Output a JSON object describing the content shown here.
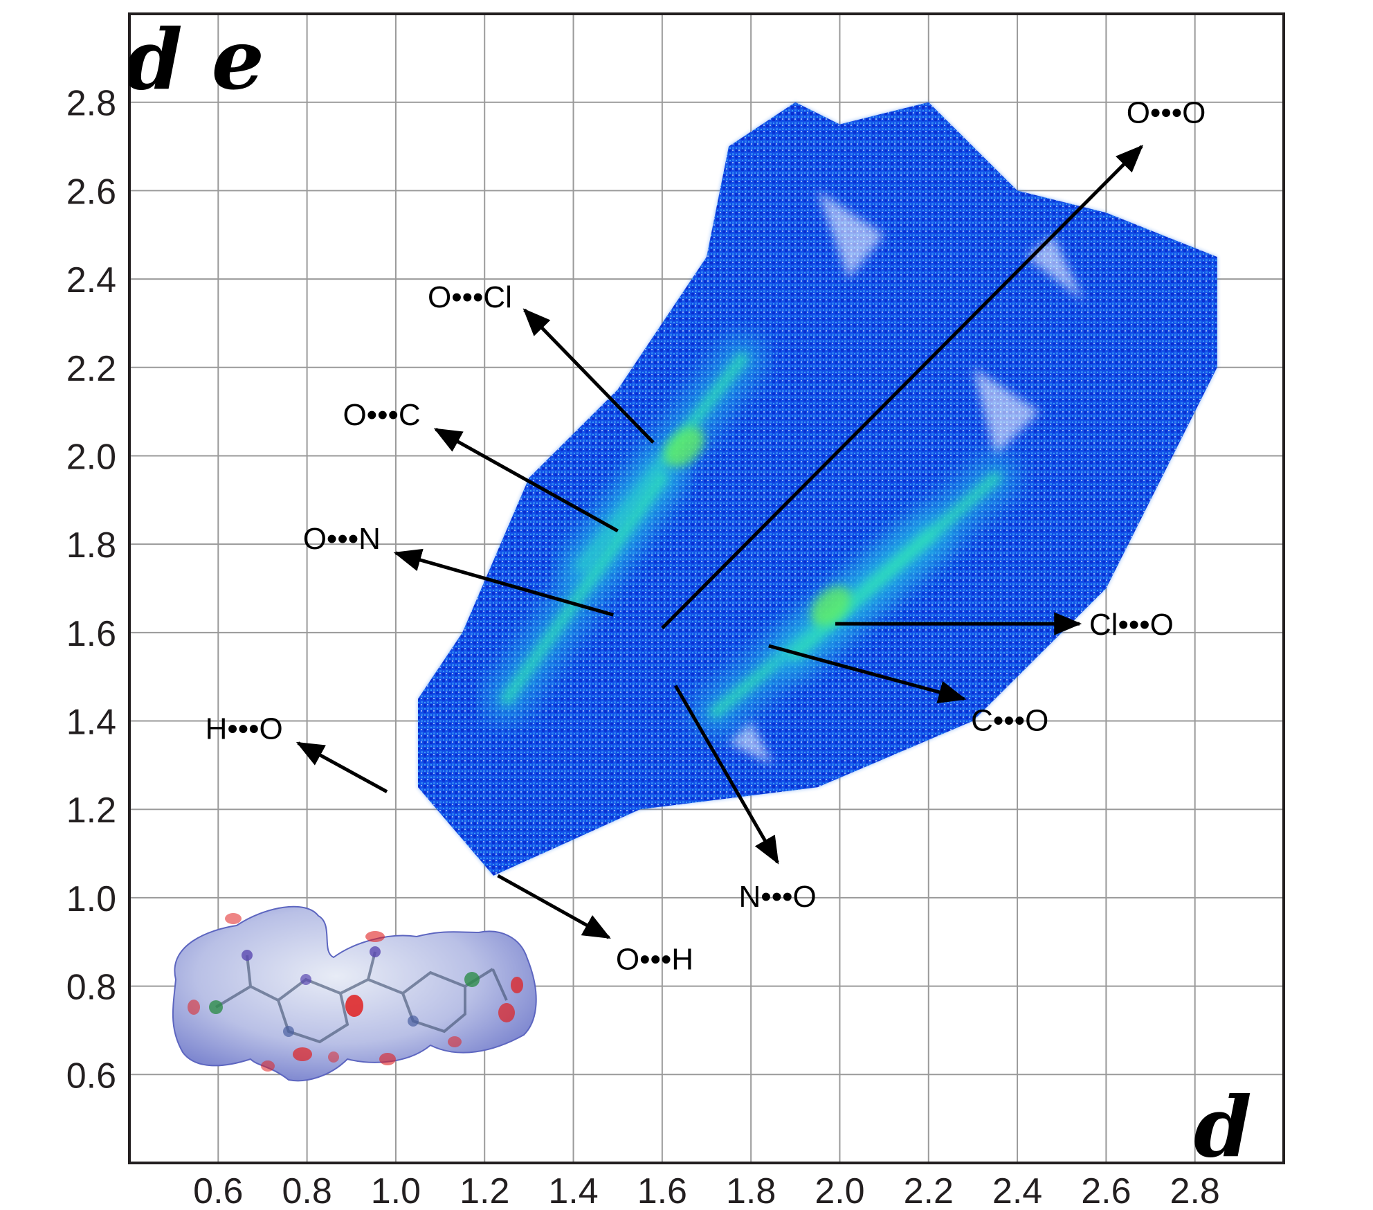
{
  "chart_data": {
    "type": "scatter",
    "title": "",
    "xlabel": "d i",
    "ylabel": "d e",
    "xlim": [
      0.4,
      3.0
    ],
    "ylim": [
      0.4,
      3.0
    ],
    "x_ticks": [
      "0.6",
      "0.8",
      "1.0",
      "1.2",
      "1.4",
      "1.6",
      "1.8",
      "2.0",
      "2.2",
      "2.4",
      "2.6",
      "2.8"
    ],
    "y_ticks": [
      "2.8",
      "2.6",
      "2.4",
      "2.2",
      "2.0",
      "1.8",
      "1.6",
      "1.4",
      "1.2",
      "1.0",
      "0.8",
      "0.6"
    ],
    "grid": true,
    "colormap": [
      "#0a3cd8",
      "#1e6ef0",
      "#28b4e6",
      "#2ee6b4",
      "#64f064"
    ],
    "regions": [
      {
        "polygon": [
          [
            1.05,
            1.25
          ],
          [
            1.22,
            1.05
          ],
          [
            1.55,
            1.2
          ],
          [
            1.95,
            1.25
          ],
          [
            2.3,
            1.4
          ],
          [
            2.6,
            1.7
          ],
          [
            2.85,
            2.2
          ],
          [
            2.85,
            2.45
          ],
          [
            2.6,
            2.55
          ],
          [
            2.4,
            2.6
          ],
          [
            2.2,
            2.8
          ],
          [
            2.0,
            2.75
          ],
          [
            1.9,
            2.8
          ],
          [
            1.75,
            2.7
          ],
          [
            1.7,
            2.45
          ],
          [
            1.5,
            2.15
          ],
          [
            1.3,
            1.95
          ],
          [
            1.15,
            1.6
          ],
          [
            1.05,
            1.45
          ]
        ]
      }
    ],
    "ridges": [
      {
        "from": [
          1.42,
          1.75
        ],
        "to": [
          1.78,
          2.22
        ]
      },
      {
        "from": [
          1.72,
          1.42
        ],
        "to": [
          2.2,
          1.82
        ]
      },
      {
        "from": [
          1.25,
          1.45
        ],
        "to": [
          1.6,
          1.95
        ]
      },
      {
        "from": [
          1.9,
          1.55
        ],
        "to": [
          2.35,
          1.95
        ]
      }
    ],
    "annotations": [
      {
        "label": "O•••O",
        "arrow_from": [
          1.6,
          1.61
        ],
        "arrow_to": [
          2.68,
          2.7
        ]
      },
      {
        "label": "O•••Cl",
        "arrow_from": [
          1.58,
          2.03
        ],
        "arrow_to": [
          1.29,
          2.33
        ]
      },
      {
        "label": "O•••C",
        "arrow_from": [
          1.5,
          1.83
        ],
        "arrow_to": [
          1.09,
          2.06
        ]
      },
      {
        "label": "O•••N",
        "arrow_from": [
          1.49,
          1.64
        ],
        "arrow_to": [
          1.0,
          1.78
        ]
      },
      {
        "label": "H•••O",
        "arrow_from": [
          0.98,
          1.24
        ],
        "arrow_to": [
          0.78,
          1.35
        ]
      },
      {
        "label": "Cl•••O",
        "arrow_from": [
          1.99,
          1.62
        ],
        "arrow_to": [
          2.54,
          1.62
        ]
      },
      {
        "label": "C•••O",
        "arrow_from": [
          1.84,
          1.57
        ],
        "arrow_to": [
          2.28,
          1.45
        ]
      },
      {
        "label": "N•••O",
        "arrow_from": [
          1.63,
          1.48
        ],
        "arrow_to": [
          1.86,
          1.08
        ]
      },
      {
        "label": "O•••H",
        "arrow_from": [
          1.23,
          1.05
        ],
        "arrow_to": [
          1.48,
          0.91
        ]
      }
    ]
  },
  "inset": {
    "name": "hirshfeld-surface-thumbnail",
    "surface_color": "#a4aee0",
    "hotspot_color": "#e02020"
  }
}
